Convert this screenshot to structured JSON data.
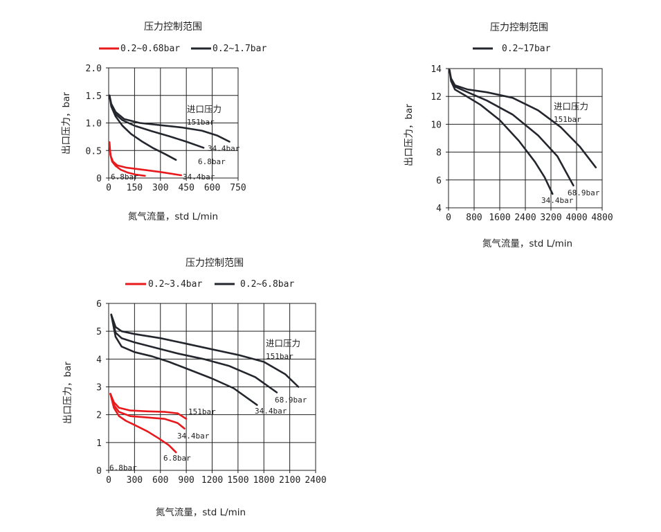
{
  "chart_data": [
    {
      "type": "line",
      "title": "压力控制范围",
      "xlabel": "氮气流量，std L/min",
      "ylabel": "出口压力，bar",
      "xlim": [
        0,
        750
      ],
      "ylim": [
        0,
        2.0
      ],
      "x_ticks": [
        "0",
        "150",
        "300",
        "450",
        "600",
        "750"
      ],
      "y_ticks": [
        "0",
        "0.5",
        "1.0",
        "1.5",
        "2.0"
      ],
      "grid": true,
      "legend": [
        {
          "label": "0.2~0.68bar",
          "color": "#e8191c"
        },
        {
          "label": "0.2~1.7bar",
          "color": "#23262d"
        }
      ],
      "annotations": [
        "进口压力",
        "151bar",
        "34.4bar",
        "6.8bar",
        "6.8bar",
        "34.4bar"
      ],
      "series": [
        {
          "color": "#e8191c",
          "x": [
            5,
            10,
            20,
            40,
            70,
            110,
            160,
            210
          ],
          "y": [
            0.65,
            0.42,
            0.3,
            0.22,
            0.15,
            0.1,
            0.06,
            0.04
          ]
        },
        {
          "color": "#e8191c",
          "x": [
            5,
            12,
            25,
            50,
            100,
            200,
            300,
            420
          ],
          "y": [
            0.58,
            0.4,
            0.3,
            0.23,
            0.19,
            0.15,
            0.11,
            0.05
          ]
        },
        {
          "color": "#23262d",
          "x": [
            5,
            15,
            40,
            80,
            130,
            190,
            260,
            330,
            390
          ],
          "y": [
            1.5,
            1.3,
            1.12,
            0.95,
            0.8,
            0.67,
            0.54,
            0.43,
            0.33
          ]
        },
        {
          "color": "#23262d",
          "x": [
            5,
            15,
            40,
            80,
            150,
            250,
            350,
            450,
            550
          ],
          "y": [
            1.5,
            1.32,
            1.16,
            1.05,
            0.95,
            0.85,
            0.76,
            0.66,
            0.55
          ]
        },
        {
          "color": "#23262d",
          "x": [
            5,
            15,
            40,
            90,
            180,
            300,
            420,
            540,
            630,
            700
          ],
          "y": [
            1.5,
            1.35,
            1.2,
            1.07,
            1.0,
            0.96,
            0.92,
            0.86,
            0.77,
            0.66
          ]
        }
      ]
    },
    {
      "type": "line",
      "title": "压力控制范围",
      "xlabel": "氮气流量，std L/min",
      "ylabel": "出口压力，bar",
      "xlim": [
        0,
        4800
      ],
      "ylim": [
        4,
        14
      ],
      "x_ticks": [
        "0",
        "800",
        "1600",
        "2400",
        "3200",
        "4000",
        "4800"
      ],
      "y_ticks": [
        "4",
        "6",
        "8",
        "10",
        "12",
        "14"
      ],
      "grid": true,
      "legend": [
        {
          "label": "0.2~17bar",
          "color": "#23262d"
        }
      ],
      "annotations": [
        "进口压力",
        "151bar",
        "68.9bar",
        "34.4bar"
      ],
      "series": [
        {
          "color": "#23262d",
          "x": [
            30,
            80,
            200,
            500,
            1000,
            1600,
            2200,
            2700,
            3000,
            3250
          ],
          "y": [
            13.9,
            13.1,
            12.5,
            12.1,
            11.4,
            10.3,
            8.8,
            7.3,
            6.2,
            5.0
          ]
        },
        {
          "color": "#23262d",
          "x": [
            30,
            80,
            200,
            600,
            1200,
            2000,
            2800,
            3400,
            3900
          ],
          "y": [
            13.9,
            13.2,
            12.7,
            12.3,
            11.7,
            10.7,
            9.2,
            7.7,
            5.6
          ]
        },
        {
          "color": "#23262d",
          "x": [
            30,
            80,
            200,
            600,
            1200,
            2000,
            2800,
            3500,
            4100,
            4600
          ],
          "y": [
            13.9,
            13.3,
            12.8,
            12.5,
            12.3,
            11.9,
            11.0,
            9.8,
            8.4,
            6.9
          ]
        }
      ]
    },
    {
      "type": "line",
      "title": "压力控制范围",
      "xlabel": "氮气流量，std L/min",
      "ylabel": "出口压力，bar",
      "xlim": [
        0,
        2400
      ],
      "ylim": [
        0,
        6
      ],
      "x_ticks": [
        "0",
        "300",
        "600",
        "900",
        "1200",
        "1500",
        "1800",
        "2100",
        "2400"
      ],
      "y_ticks": [
        "0",
        "1",
        "2",
        "3",
        "4",
        "5",
        "6"
      ],
      "grid": true,
      "legend": [
        {
          "label": "0.2~3.4bar",
          "color": "#e8191c"
        },
        {
          "label": "0.2~6.8bar",
          "color": "#23262d"
        }
      ],
      "annotations": [
        "进口压力",
        "151bar",
        "68.9bar",
        "34.4bar",
        "151bar",
        "34.4bar",
        "6.8bar",
        "6.8bar"
      ],
      "series": [
        {
          "color": "#e8191c",
          "x": [
            20,
            60,
            120,
            200,
            320,
            450,
            580,
            700,
            780
          ],
          "y": [
            2.75,
            2.25,
            1.95,
            1.78,
            1.6,
            1.4,
            1.15,
            0.9,
            0.65
          ]
        },
        {
          "color": "#e8191c",
          "x": [
            20,
            60,
            120,
            250,
            450,
            650,
            800,
            880
          ],
          "y": [
            2.75,
            2.35,
            2.1,
            1.95,
            1.9,
            1.85,
            1.7,
            1.5
          ]
        },
        {
          "color": "#e8191c",
          "x": [
            20,
            60,
            120,
            250,
            450,
            650,
            800,
            900
          ],
          "y": [
            2.75,
            2.45,
            2.25,
            2.15,
            2.12,
            2.1,
            2.05,
            1.85
          ]
        },
        {
          "color": "#23262d",
          "x": [
            30,
            80,
            150,
            300,
            500,
            700,
            950,
            1200,
            1450,
            1720
          ],
          "y": [
            5.6,
            4.8,
            4.45,
            4.25,
            4.1,
            3.9,
            3.6,
            3.3,
            2.95,
            2.35
          ]
        },
        {
          "color": "#23262d",
          "x": [
            30,
            80,
            150,
            300,
            550,
            800,
            1100,
            1400,
            1700,
            1950
          ],
          "y": [
            5.6,
            4.95,
            4.75,
            4.6,
            4.4,
            4.2,
            4.0,
            3.75,
            3.35,
            2.8
          ]
        },
        {
          "color": "#23262d",
          "x": [
            30,
            80,
            150,
            300,
            600,
            900,
            1200,
            1500,
            1800,
            2050,
            2200
          ],
          "y": [
            5.6,
            5.15,
            5.0,
            4.9,
            4.75,
            4.55,
            4.35,
            4.15,
            3.9,
            3.45,
            3.0
          ]
        }
      ]
    }
  ]
}
